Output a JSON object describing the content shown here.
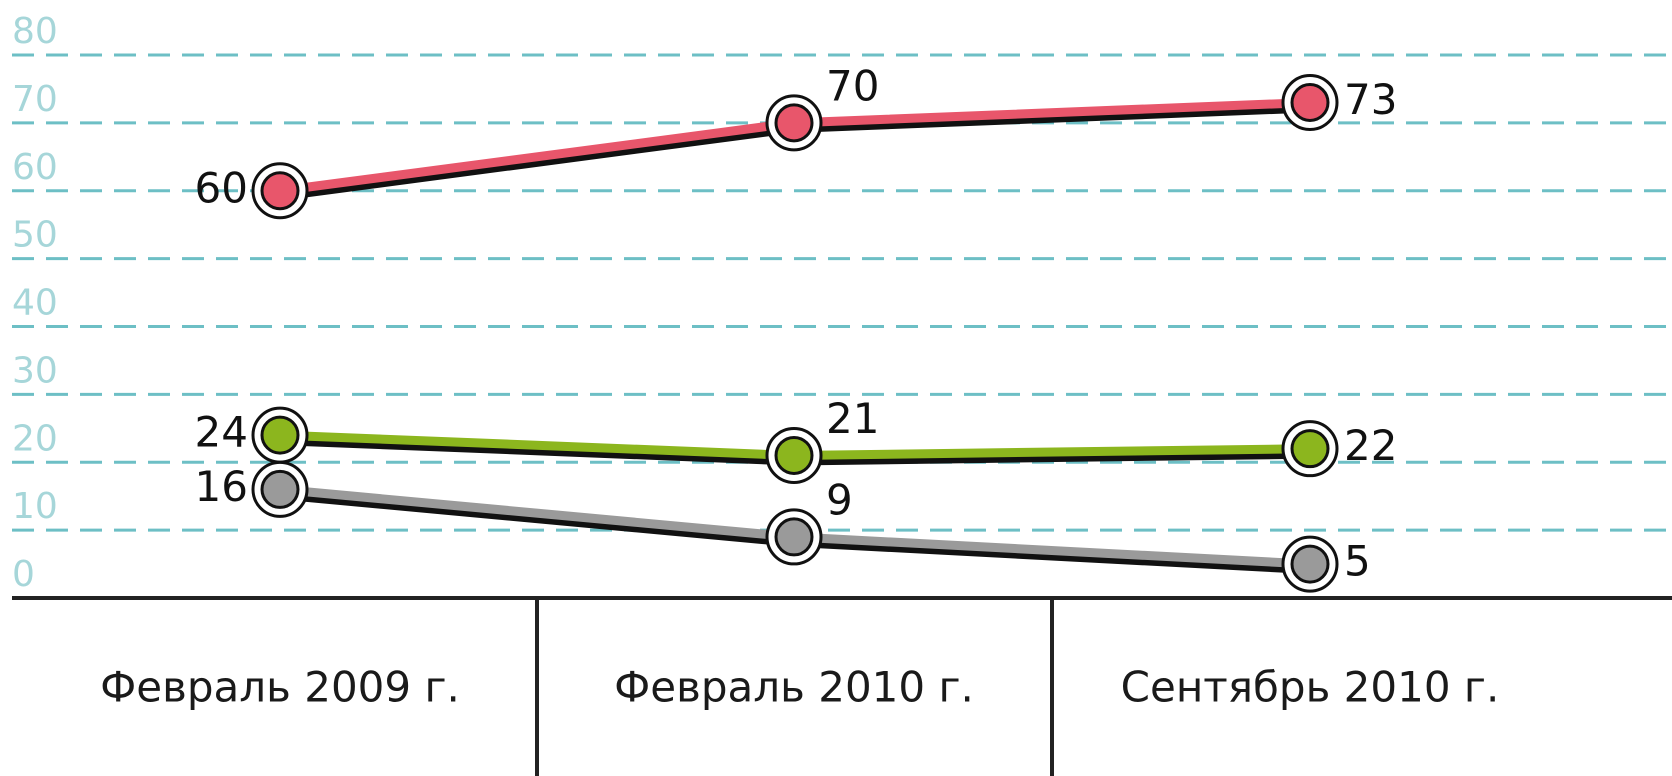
{
  "chart_data": {
    "type": "line",
    "categories": [
      "Февраль 2009 г.",
      "Февраль 2010 г.",
      "Сентябрь 2010 г."
    ],
    "series": [
      {
        "color": "#e8566b",
        "values": [
          60,
          70,
          73
        ]
      },
      {
        "color": "#8cb61e",
        "values": [
          24,
          21,
          22
        ]
      },
      {
        "color": "#9a9a9a",
        "values": [
          16,
          9,
          5
        ]
      }
    ],
    "ylim": [
      0,
      80
    ],
    "yticks": [
      0,
      10,
      20,
      30,
      40,
      50,
      60,
      70,
      80
    ],
    "grid": true
  }
}
